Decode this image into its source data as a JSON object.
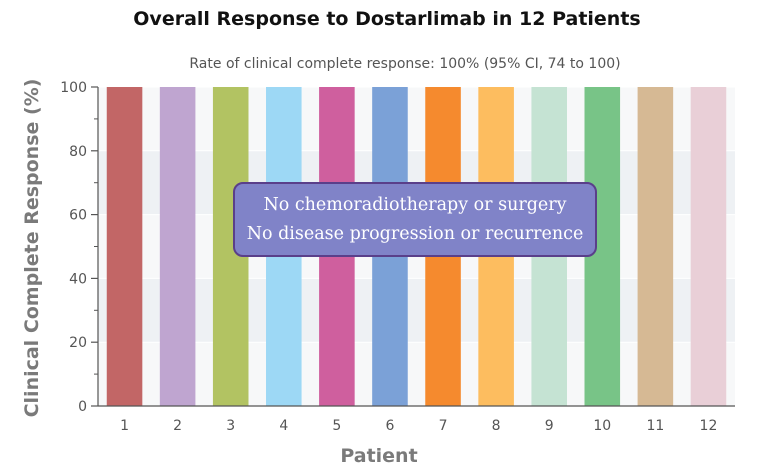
{
  "chart_data": {
    "type": "bar",
    "title": "Overall Response to Dostarlimab in 12 Patients",
    "subtitle": "Rate of clinical complete response: 100% (95% CI, 74 to 100)",
    "xlabel": "Patient",
    "ylabel": "Clinical Complete Response (%)",
    "ylim": [
      0,
      100
    ],
    "yticks": [
      "0",
      "20",
      "40",
      "60",
      "80",
      "100"
    ],
    "categories": [
      "1",
      "2",
      "3",
      "4",
      "5",
      "6",
      "7",
      "8",
      "9",
      "10",
      "11",
      "12"
    ],
    "values": [
      100,
      100,
      100,
      100,
      100,
      100,
      100,
      100,
      100,
      100,
      100,
      100
    ],
    "colors": [
      "#c26666",
      "#bfa5d0",
      "#b2c362",
      "#9dd8f5",
      "#cf5f9e",
      "#7ba1d7",
      "#f58a2e",
      "#fdbd5f",
      "#c5e3d3",
      "#78c487",
      "#d6b994",
      "#e9cfd7"
    ],
    "annotation": [
      "No chemoradiotherapy or surgery",
      "No disease progression or recurrence"
    ],
    "grid": true,
    "legend": "none"
  }
}
